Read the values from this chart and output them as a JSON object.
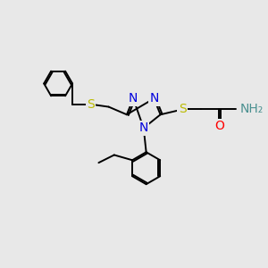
{
  "background_color": "#e8e8e8",
  "bond_color": "#000000",
  "atom_colors": {
    "N": "#0000dd",
    "S": "#bbbb00",
    "O": "#ff0000",
    "NH2": "#4a9090",
    "C": "#000000"
  },
  "lw": 1.4,
  "fs": 10,
  "figsize": [
    3.0,
    3.0
  ],
  "dpi": 100
}
